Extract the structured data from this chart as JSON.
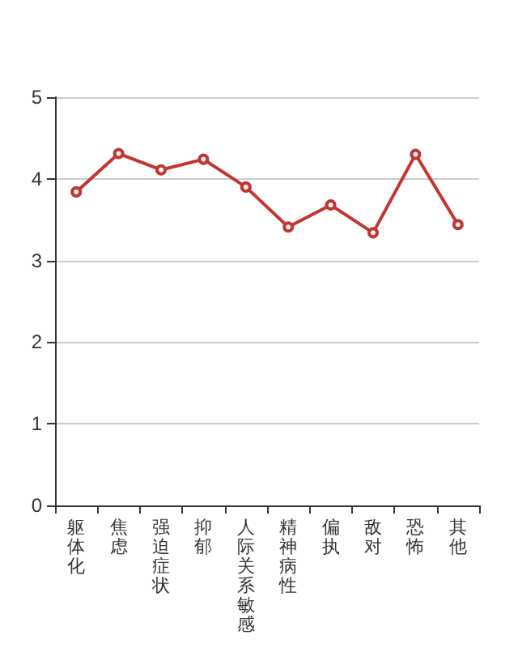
{
  "chart_data": {
    "type": "line",
    "categories": [
      "躯体化",
      "焦虑",
      "强迫症状",
      "抑郁",
      "人际关系敏感",
      "精神病性",
      "偏执",
      "敌对",
      "恐怖",
      "其他"
    ],
    "series": [
      {
        "color": "#c23531",
        "values": [
          3.84,
          4.31,
          4.11,
          4.24,
          3.9,
          3.41,
          3.68,
          3.34,
          4.3,
          3.44
        ]
      }
    ],
    "ylim": [
      0,
      5
    ],
    "yticks": [
      0,
      1,
      2,
      3,
      4,
      5
    ],
    "grid": "y",
    "marker": "circle",
    "line_style": "solid"
  }
}
